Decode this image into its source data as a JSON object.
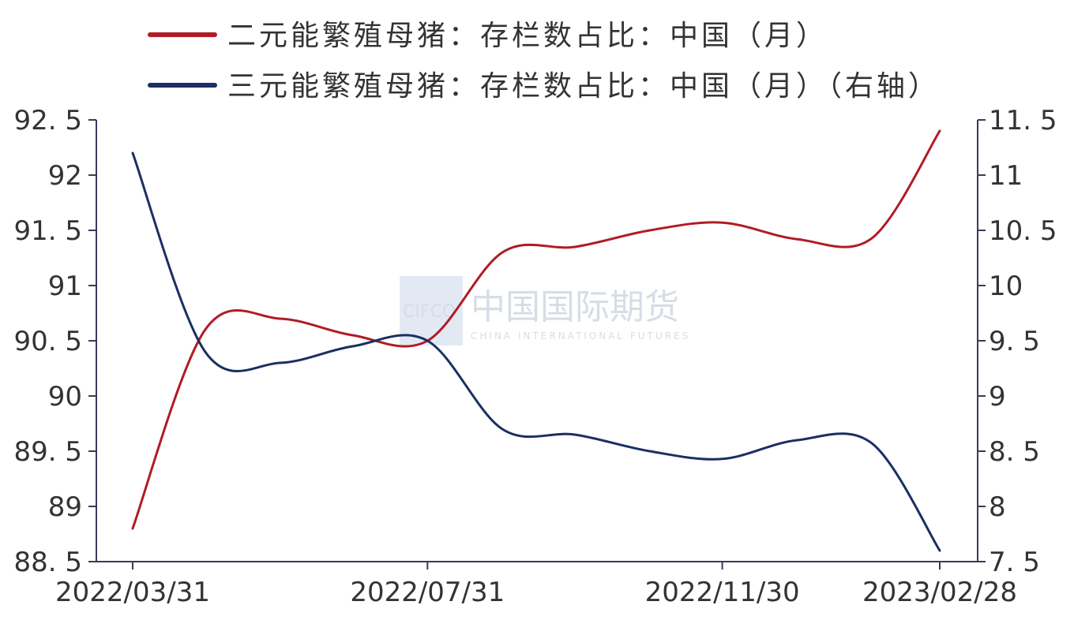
{
  "chart_data": {
    "type": "line",
    "title": "",
    "x_dates": [
      "2022-03-31",
      "2022-04-30",
      "2022-05-31",
      "2022-06-30",
      "2022-07-31",
      "2022-08-31",
      "2022-09-30",
      "2022-10-31",
      "2022-11-30",
      "2022-12-31",
      "2023-01-31",
      "2023-02-28"
    ],
    "x_tick_labels": [
      "2022/03/31",
      "2022/07/31",
      "2022/11/30",
      "2023/02/28"
    ],
    "left_axis": {
      "min": 88.5,
      "max": 92.5,
      "ticks": [
        92.5,
        92,
        91.5,
        91,
        90.5,
        90,
        89.5,
        89,
        88.5
      ]
    },
    "right_axis": {
      "min": 7.5,
      "max": 11.5,
      "ticks": [
        11.5,
        11,
        10.5,
        10,
        9.5,
        9,
        8.5,
        8,
        7.5
      ]
    },
    "series": [
      {
        "name": "二元能繁殖母猪：存栏数占比：中国（月）",
        "axis": "left",
        "color": "#b01c24",
        "values": [
          88.8,
          90.6,
          90.7,
          90.55,
          90.5,
          91.3,
          91.35,
          91.5,
          91.57,
          91.42,
          91.43,
          92.4
        ]
      },
      {
        "name": "三元能繁殖母猪：存栏数占比：中国（月）（右轴）",
        "axis": "right",
        "color": "#1a2f63",
        "values": [
          11.2,
          9.4,
          9.3,
          9.45,
          9.5,
          8.7,
          8.65,
          8.5,
          8.43,
          8.6,
          8.57,
          7.6
        ]
      }
    ],
    "legend_position": "top",
    "grid": false
  },
  "legend": {
    "items": [
      {
        "label": "二元能繁殖母猪：存栏数占比：中国（月）",
        "color": "#b01c24"
      },
      {
        "label": "三元能繁殖母猪：存栏数占比：中国（月）（右轴）",
        "color": "#1a2f63"
      }
    ]
  },
  "watermark": {
    "logo_text": "CIFCO",
    "company_name": "中国国际期货",
    "tagline": "CHINA INTERNATIONAL FUTURES"
  }
}
